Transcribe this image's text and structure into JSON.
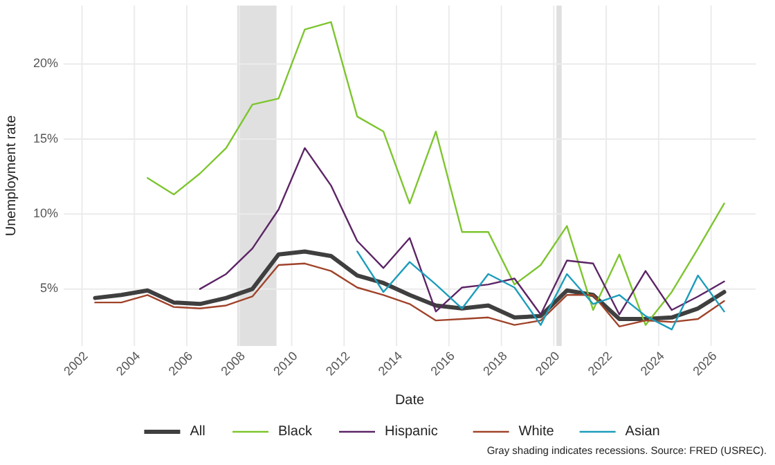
{
  "chart_data": {
    "type": "line",
    "xlabel": "Date",
    "ylabel": "Unemployment rate",
    "annotations": [
      "Gray shading indicates recessions. Source: FRED (USREC)."
    ],
    "xlim": [
      2001.3,
      2027.7
    ],
    "ylim": [
      1.2,
      23.9
    ],
    "xticks": [
      2002,
      2004,
      2006,
      2008,
      2010,
      2012,
      2014,
      2016,
      2018,
      2020,
      2022,
      2024,
      2026
    ],
    "yticks": [
      {
        "value": 5,
        "label": "5%"
      },
      {
        "value": 10,
        "label": "10%"
      },
      {
        "value": 15,
        "label": "15%"
      },
      {
        "value": 20,
        "label": "20%"
      }
    ],
    "grid": true,
    "legend": "bottom",
    "marker": "none",
    "line_style": "solid",
    "bands": [
      {
        "axis": "x",
        "from": 2007.92,
        "to": 2009.42,
        "color": "#e0e0e0"
      },
      {
        "axis": "x",
        "from": 2020.1,
        "to": 2020.3,
        "color": "#e0e0e0"
      }
    ],
    "series": [
      {
        "name": "All",
        "color": "#3f3f3f",
        "x": [
          2002.5,
          2003.5,
          2004.5,
          2005.5,
          2006.5,
          2007.5,
          2008.5,
          2009.5,
          2010.5,
          2011.5,
          2012.5,
          2013.5,
          2014.5,
          2015.5,
          2016.5,
          2017.5,
          2018.5,
          2019.5,
          2020.5,
          2021.5,
          2022.5,
          2023.5,
          2024.5,
          2025.5,
          2026.5
        ],
        "values": [
          4.4,
          4.6,
          4.9,
          4.1,
          4.0,
          4.4,
          5.0,
          7.3,
          7.5,
          7.2,
          5.9,
          5.4,
          4.6,
          3.9,
          3.7,
          3.9,
          3.1,
          3.2,
          4.9,
          4.6,
          3.0,
          3.0,
          3.1,
          3.7,
          4.8
        ]
      },
      {
        "name": "Black",
        "color": "#7dc52e",
        "x": [
          2004.5,
          2005.5,
          2006.5,
          2007.5,
          2008.5,
          2009.5,
          2010.5,
          2011.5,
          2012.5,
          2013.5,
          2014.5,
          2015.5,
          2016.5,
          2017.5,
          2018.5,
          2019.5,
          2020.5,
          2021.5,
          2022.5,
          2023.5,
          2024.5,
          2025.5,
          2026.5
        ],
        "values": [
          12.4,
          11.3,
          12.7,
          14.4,
          17.3,
          17.7,
          22.3,
          22.8,
          16.5,
          15.5,
          10.7,
          15.5,
          8.8,
          8.8,
          5.3,
          6.6,
          9.2,
          3.6,
          7.3,
          2.6,
          4.8,
          7.7,
          10.7
        ]
      },
      {
        "name": "Hispanic",
        "color": "#5c2466",
        "x": [
          2006.5,
          2007.5,
          2008.5,
          2009.5,
          2010.5,
          2011.5,
          2012.5,
          2013.5,
          2014.5,
          2015.5,
          2016.5,
          2017.5,
          2018.5,
          2019.5,
          2020.5,
          2021.5,
          2022.5,
          2023.5,
          2024.5,
          2025.5,
          2026.5
        ],
        "values": [
          5.0,
          6.0,
          7.7,
          10.3,
          14.4,
          11.9,
          8.2,
          6.4,
          8.4,
          3.5,
          5.1,
          5.3,
          5.7,
          3.3,
          6.9,
          6.7,
          3.3,
          6.2,
          3.6,
          4.5,
          5.5
        ]
      },
      {
        "name": "White",
        "color": "#a0432a",
        "x": [
          2002.5,
          2003.5,
          2004.5,
          2005.5,
          2006.5,
          2007.5,
          2008.5,
          2009.5,
          2010.5,
          2011.5,
          2012.5,
          2013.5,
          2014.5,
          2015.5,
          2016.5,
          2017.5,
          2018.5,
          2019.5,
          2020.5,
          2021.5,
          2022.5,
          2023.5,
          2024.5,
          2025.5,
          2026.5
        ],
        "values": [
          4.1,
          4.1,
          4.6,
          3.8,
          3.7,
          3.9,
          4.5,
          6.6,
          6.7,
          6.2,
          5.1,
          4.6,
          4.0,
          2.9,
          3.0,
          3.1,
          2.6,
          2.9,
          4.6,
          4.6,
          2.5,
          2.9,
          2.8,
          3.0,
          4.2
        ]
      },
      {
        "name": "Asian",
        "color": "#1c9dba",
        "x": [
          2012.5,
          2013.5,
          2014.5,
          2015.5,
          2016.5,
          2017.5,
          2018.5,
          2019.5,
          2020.5,
          2021.5,
          2022.5,
          2023.5,
          2024.5,
          2025.5,
          2026.5
        ],
        "values": [
          7.5,
          4.8,
          6.8,
          5.3,
          3.7,
          6.0,
          5.1,
          2.6,
          6.0,
          4.0,
          4.6,
          3.2,
          2.3,
          5.9,
          3.5
        ]
      }
    ]
  }
}
